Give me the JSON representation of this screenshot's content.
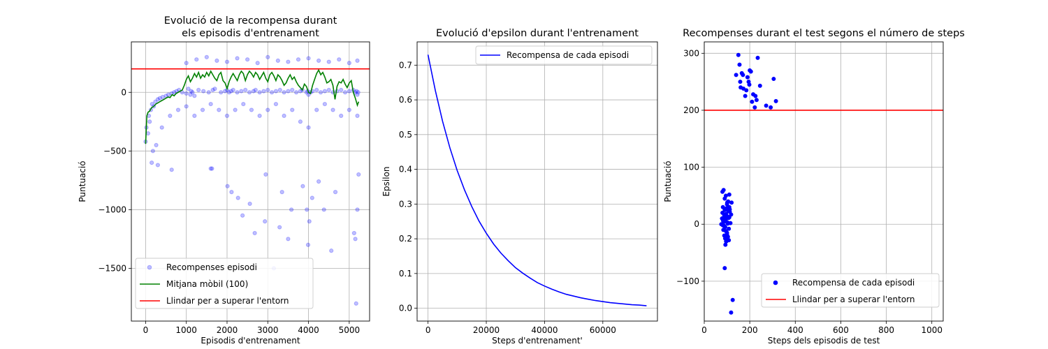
{
  "chart_data": [
    {
      "type": "scatter",
      "title": [
        "Evolució de la recompensa durant",
        "els episodis d'entrenament"
      ],
      "xlabel": "Episodis d'entrenament",
      "ylabel": "Puntuació",
      "xlim": [
        -350,
        5500
      ],
      "ylim": [
        -1950,
        430
      ],
      "xticks": [
        0,
        1000,
        2000,
        3000,
        4000,
        5000
      ],
      "yticks": [
        -1500,
        -1000,
        -500,
        0
      ],
      "grid": true,
      "legend_position": "lower-left",
      "threshold": 200,
      "series": [
        {
          "name": "Recompenses episodi",
          "kind": "points",
          "color": "#0000ff",
          "x": [
            0,
            20,
            60,
            80,
            100,
            130,
            160,
            200,
            240,
            300,
            350,
            420,
            500,
            560,
            640,
            700,
            760,
            820,
            900,
            1000,
            1050,
            1100,
            1120,
            1150,
            1200,
            1300,
            1420,
            1550,
            1650,
            1700,
            1850,
            1950,
            2000,
            2050,
            2100,
            2150,
            2250,
            2350,
            2450,
            2550,
            2650,
            2700,
            2800,
            2900,
            3000,
            3100,
            3200,
            3300,
            3400,
            3500,
            3600,
            3700,
            3800,
            3850,
            3950,
            3980,
            4000,
            4050,
            4100,
            4200,
            4300,
            4400,
            4500,
            4600,
            4700,
            4800,
            4900,
            5000,
            5100,
            5150,
            5180,
            5200,
            5220,
            150,
            180,
            260,
            400,
            600,
            800,
            1000,
            1200,
            1400,
            1600,
            1800,
            2000,
            2200,
            2400,
            2600,
            2800,
            3000,
            3200,
            3400,
            3600,
            3800,
            4000,
            4200,
            4400,
            4600,
            4800,
            5000,
            5200,
            1000,
            1250,
            1500,
            1750,
            2000,
            2250,
            2500,
            2750,
            3000,
            3250,
            3500,
            3750,
            4000,
            4250,
            4500,
            4750,
            5000,
            5200,
            300,
            640,
            1630,
            2010,
            2110,
            2270,
            2380,
            2560,
            2680,
            2930,
            3290,
            3350,
            3500,
            3580,
            3860,
            3960,
            3990,
            4020,
            4090,
            4380,
            4560,
            4660,
            5120,
            5150,
            5170,
            5200,
            5230,
            1600,
            2950,
            4250,
            3150
          ],
          "y": [
            -420,
            -300,
            -350,
            -200,
            -250,
            -150,
            -100,
            -120,
            -80,
            -60,
            -50,
            -40,
            -30,
            -20,
            -10,
            0,
            10,
            20,
            0,
            -10,
            30,
            -20,
            10,
            0,
            -30,
            20,
            10,
            0,
            20,
            30,
            0,
            10,
            20,
            0,
            10,
            20,
            0,
            10,
            20,
            0,
            10,
            20,
            0,
            10,
            20,
            0,
            10,
            20,
            0,
            10,
            20,
            0,
            10,
            20,
            0,
            10,
            -20,
            0,
            10,
            20,
            0,
            10,
            20,
            0,
            10,
            20,
            0,
            10,
            20,
            0,
            10,
            -20,
            0,
            -600,
            -500,
            -450,
            -300,
            -200,
            -150,
            -120,
            -200,
            -150,
            -100,
            -150,
            -200,
            -150,
            -100,
            -150,
            -200,
            -150,
            -100,
            -200,
            -150,
            -250,
            -300,
            -150,
            -100,
            -150,
            -200,
            -150,
            -200,
            250,
            280,
            300,
            270,
            260,
            290,
            280,
            250,
            300,
            270,
            260,
            280,
            290,
            270,
            260,
            280,
            250,
            270,
            -620,
            -660,
            -650,
            -800,
            -850,
            -900,
            -1050,
            -950,
            -1200,
            -1100,
            -1150,
            -850,
            -1250,
            -1000,
            -800,
            -1000,
            -1300,
            -1100,
            -900,
            -1000,
            -1350,
            -850,
            -1200,
            -1250,
            -1800,
            -1000,
            -700,
            -650,
            -700,
            -760,
            -1500
          ]
        },
        {
          "name": "Mitjana mòbil (100)",
          "kind": "line",
          "color": "#008000",
          "x": [
            0,
            30,
            60,
            100,
            150,
            200,
            250,
            300,
            350,
            400,
            450,
            500,
            550,
            600,
            650,
            700,
            750,
            800,
            850,
            900,
            950,
            1000,
            1050,
            1100,
            1150,
            1200,
            1250,
            1300,
            1350,
            1400,
            1450,
            1500,
            1550,
            1600,
            1650,
            1700,
            1750,
            1800,
            1850,
            1900,
            1950,
            2000,
            2050,
            2100,
            2150,
            2200,
            2250,
            2300,
            2350,
            2400,
            2450,
            2500,
            2550,
            2600,
            2650,
            2700,
            2750,
            2800,
            2850,
            2900,
            2950,
            3000,
            3050,
            3100,
            3150,
            3200,
            3250,
            3300,
            3350,
            3400,
            3450,
            3500,
            3550,
            3600,
            3650,
            3700,
            3750,
            3800,
            3850,
            3900,
            3950,
            4000,
            4050,
            4100,
            4150,
            4200,
            4250,
            4300,
            4350,
            4400,
            4450,
            4500,
            4550,
            4600,
            4650,
            4700,
            4750,
            4800,
            4850,
            4900,
            4950,
            5000,
            5050,
            5100,
            5150,
            5200,
            5230
          ],
          "y": [
            -440,
            -200,
            -170,
            -160,
            -130,
            -120,
            -100,
            -90,
            -80,
            -70,
            -60,
            -50,
            -40,
            -45,
            -20,
            -30,
            -10,
            0,
            10,
            20,
            60,
            110,
            140,
            90,
            120,
            160,
            130,
            170,
            120,
            150,
            130,
            170,
            140,
            180,
            150,
            120,
            100,
            150,
            170,
            100,
            80,
            30,
            90,
            130,
            160,
            130,
            100,
            150,
            180,
            160,
            100,
            150,
            180,
            160,
            130,
            170,
            150,
            110,
            140,
            170,
            120,
            90,
            150,
            170,
            140,
            100,
            150,
            130,
            100,
            60,
            80,
            120,
            150,
            110,
            130,
            90,
            60,
            40,
            20,
            70,
            50,
            0,
            -10,
            60,
            110,
            160,
            190,
            150,
            170,
            130,
            80,
            90,
            110,
            60,
            -60,
            50,
            90,
            80,
            110,
            70,
            40,
            80,
            100,
            0,
            -50,
            -110,
            -80
          ]
        },
        {
          "name": "Llindar per a superar l'entorn",
          "kind": "hline",
          "color": "#ff0000",
          "y": 200
        }
      ]
    },
    {
      "type": "line",
      "title": [
        "Evolució d'epsilon durant l'entrenament"
      ],
      "xlabel": "Steps d'entrenament'",
      "ylabel": "Epsilon",
      "xlim": [
        -3750,
        78750
      ],
      "ylim": [
        -0.037,
        0.767
      ],
      "xticks": [
        0,
        20000,
        40000,
        60000
      ],
      "yticks": [
        0.0,
        0.1,
        0.2,
        0.3,
        0.4,
        0.5,
        0.6,
        0.7
      ],
      "yticks_labels": [
        "0.0",
        "0.1",
        "0.2",
        "0.3",
        "0.4",
        "0.5",
        "0.6",
        "0.7"
      ],
      "grid": true,
      "legend_position": "upper-right",
      "series": [
        {
          "name": "Recompensa de cada episodi",
          "kind": "line",
          "color": "#0000ff",
          "x": [
            0,
            2500,
            5000,
            7500,
            10000,
            12500,
            15000,
            17500,
            20000,
            22500,
            25000,
            27500,
            30000,
            32500,
            35000,
            37500,
            40000,
            42500,
            45000,
            47500,
            50000,
            52500,
            55000,
            57500,
            60000,
            62500,
            65000,
            67500,
            70000,
            72500,
            75000
          ],
          "y": [
            0.73,
            0.627,
            0.538,
            0.462,
            0.397,
            0.341,
            0.293,
            0.251,
            0.216,
            0.185,
            0.159,
            0.137,
            0.117,
            0.101,
            0.087,
            0.074,
            0.064,
            0.055,
            0.047,
            0.04,
            0.035,
            0.03,
            0.026,
            0.022,
            0.019,
            0.016,
            0.014,
            0.012,
            0.01,
            0.009,
            0.007
          ]
        }
      ]
    },
    {
      "type": "scatter",
      "title": [
        "Recompenses durant el test segons el número de steps"
      ],
      "xlabel": "Steps dels episodis de test",
      "ylabel": "Puntuació",
      "xlim": [
        0,
        1050
      ],
      "ylim": [
        -170,
        320
      ],
      "xticks": [
        0,
        200,
        400,
        600,
        800,
        1000
      ],
      "yticks": [
        -100,
        0,
        100,
        200,
        300
      ],
      "grid": true,
      "legend_position": "lower-right",
      "threshold": 200,
      "series": [
        {
          "name": "Recompensa de cada episodi",
          "kind": "points",
          "color": "#0000ff",
          "x": [
            140,
            150,
            155,
            158,
            165,
            172,
            180,
            190,
            198,
            205,
            210,
            222,
            235,
            245,
            272,
            292,
            305,
            315,
            195,
            225,
            160,
            170,
            185,
            200,
            215,
            230,
            75,
            78,
            80,
            82,
            84,
            86,
            88,
            90,
            92,
            94,
            96,
            98,
            100,
            102,
            104,
            106,
            108,
            110,
            112,
            115,
            118,
            80,
            85,
            90,
            95,
            100,
            105,
            110,
            88,
            92,
            96,
            100,
            104,
            108,
            83,
            87,
            91,
            95,
            99,
            103,
            107,
            93,
            97,
            101,
            90,
            100,
            110,
            120,
            125,
            118,
            82,
            86,
            112,
            94
          ],
          "y": [
            262,
            297,
            280,
            250,
            265,
            238,
            225,
            258,
            245,
            268,
            215,
            205,
            292,
            243,
            208,
            205,
            255,
            216,
            250,
            225,
            240,
            262,
            235,
            270,
            228,
            218,
            0,
            10,
            20,
            30,
            -10,
            5,
            15,
            25,
            -5,
            8,
            18,
            28,
            -15,
            3,
            13,
            23,
            -8,
            12,
            22,
            2,
            17,
            57,
            60,
            45,
            50,
            35,
            40,
            30,
            -20,
            -25,
            -30,
            -18,
            -22,
            -28,
            6,
            -3,
            9,
            -12,
            14,
            1,
            11,
            -36,
            -30,
            38,
            -77,
            -25,
            52,
            38,
            -133,
            -155,
            -2,
            4,
            26,
            7
          ]
        },
        {
          "name": "Llindar per a superar l'entorn",
          "kind": "hline",
          "color": "#ff0000",
          "y": 200
        }
      ]
    }
  ]
}
